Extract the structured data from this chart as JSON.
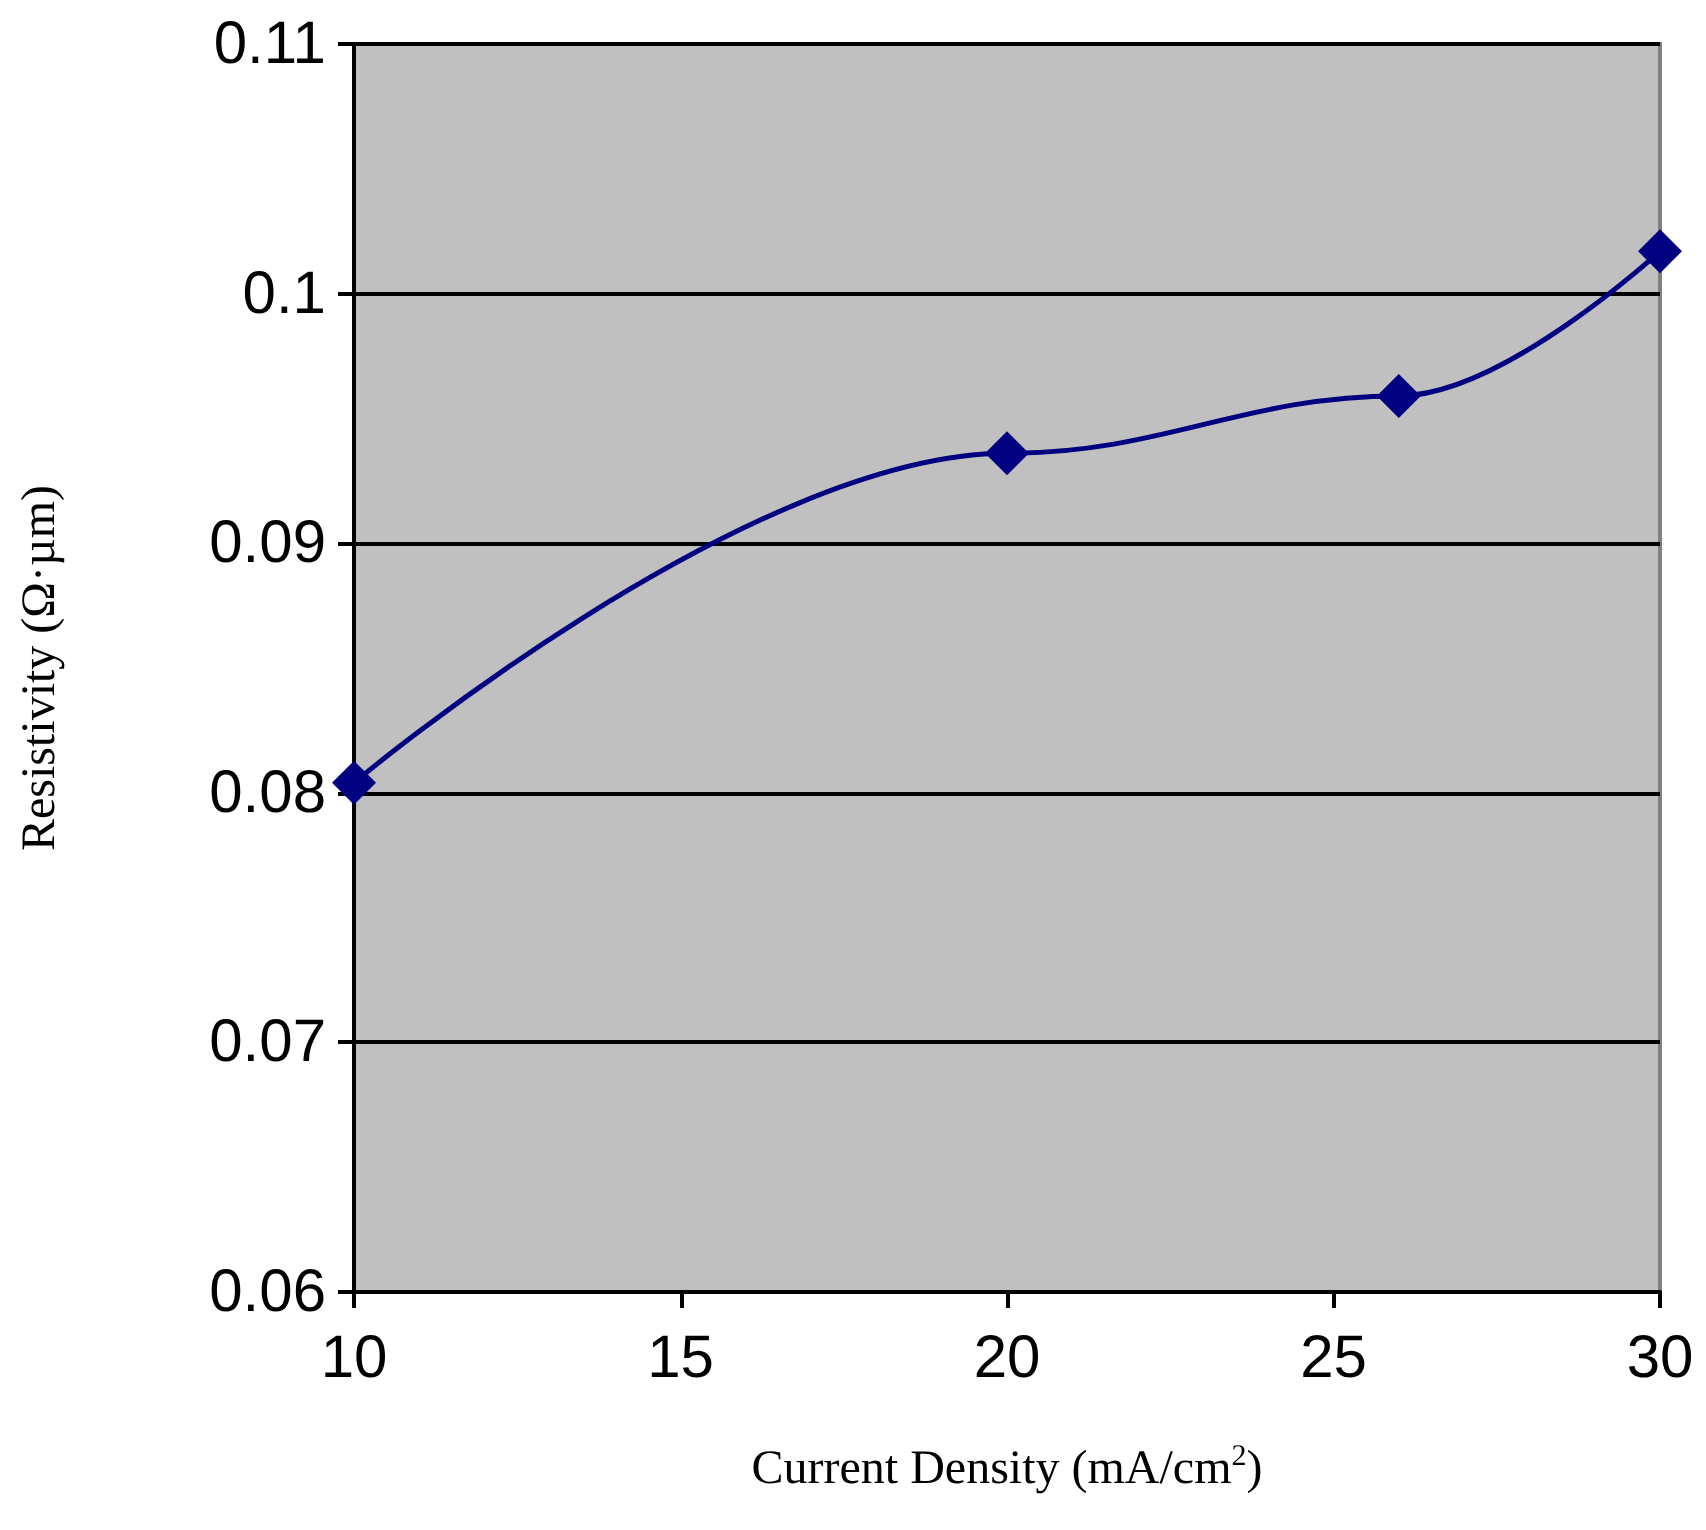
{
  "chart_data": {
    "type": "line",
    "xlabel": "Current Density (mA/cm$^{2}$)",
    "ylabel": "Resistivity (Ω·µm)",
    "x": [
      10,
      20,
      26,
      30
    ],
    "series": [
      {
        "color": "#000080",
        "values": [
          0.0804,
          0.0936,
          0.0959,
          0.1017
        ]
      }
    ],
    "xlim": [
      10,
      30
    ],
    "xticks": [
      10,
      15,
      20,
      25,
      30
    ],
    "ylim": [
      0.06,
      0.11
    ],
    "yticks": [
      0.06,
      0.07,
      0.08,
      0.09,
      0.1,
      0.11
    ],
    "grid": "y",
    "marker": "diamond",
    "line_style": "solid"
  }
}
